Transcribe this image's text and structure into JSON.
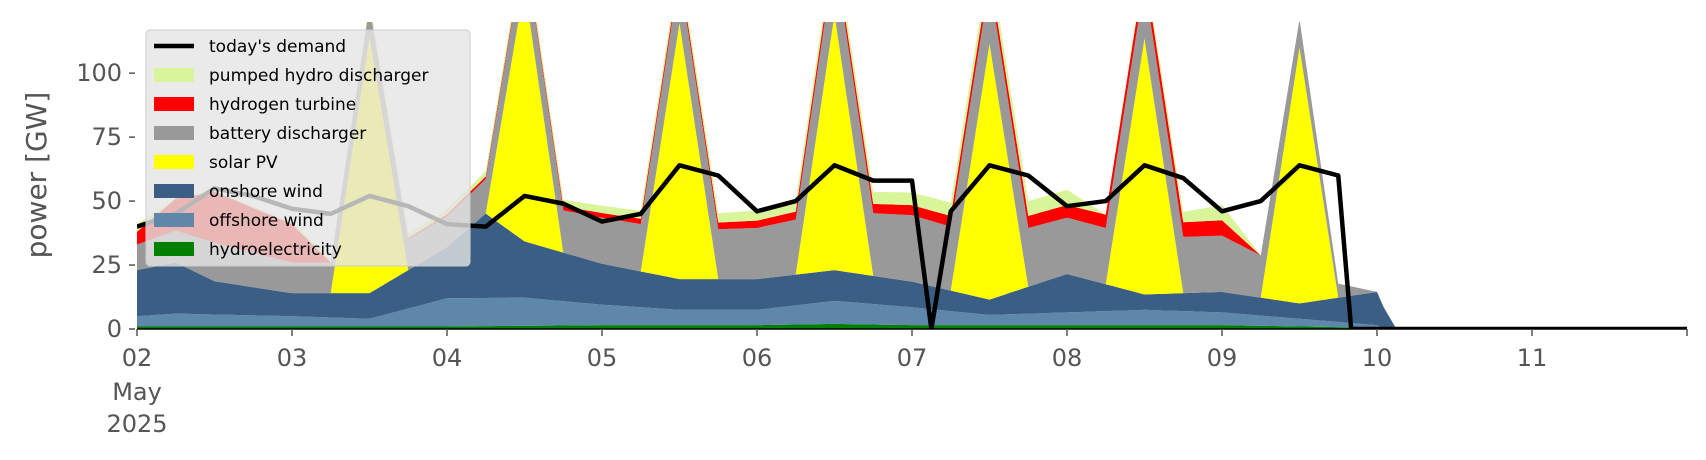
{
  "chart_data": {
    "type": "area",
    "ylabel": "power [GW]",
    "ylim": [
      0,
      120
    ],
    "y_ticks": [
      0,
      25,
      50,
      75,
      100
    ],
    "x_domain": [
      "2025-05-02",
      "2025-05-12"
    ],
    "x_tick_labels": [
      {
        "date": "2025-05-02",
        "label": "02",
        "sub": [
          "May",
          "2025"
        ]
      },
      {
        "date": "2025-05-03",
        "label": "03"
      },
      {
        "date": "2025-05-04",
        "label": "04"
      },
      {
        "date": "2025-05-05",
        "label": "05"
      },
      {
        "date": "2025-05-06",
        "label": "06"
      },
      {
        "date": "2025-05-07",
        "label": "07"
      },
      {
        "date": "2025-05-08",
        "label": "08"
      },
      {
        "date": "2025-05-09",
        "label": "09"
      },
      {
        "date": "2025-05-10",
        "label": "10"
      },
      {
        "date": "2025-05-11",
        "label": "11"
      }
    ],
    "legend_position": "top-left",
    "grid": false,
    "stacked_series": [
      {
        "name": "hydroelectricity",
        "color": "#008000",
        "points": [
          [
            "2025-05-02 00:00",
            1
          ],
          [
            "2025-05-03 00:00",
            1
          ],
          [
            "2025-05-04 00:00",
            1
          ],
          [
            "2025-05-05 00:00",
            1.5
          ],
          [
            "2025-05-06 00:00",
            1.5
          ],
          [
            "2025-05-06 12:00",
            2
          ],
          [
            "2025-05-07 00:00",
            1.5
          ],
          [
            "2025-05-08 00:00",
            1.5
          ],
          [
            "2025-05-09 00:00",
            1.5
          ],
          [
            "2025-05-09 12:00",
            1
          ],
          [
            "2025-05-10 00:00",
            0.5
          ]
        ]
      },
      {
        "name": "offshore wind",
        "color": "#5f87aa",
        "points": [
          [
            "2025-05-02 00:00",
            4
          ],
          [
            "2025-05-02 06:00",
            5
          ],
          [
            "2025-05-03 00:00",
            4
          ],
          [
            "2025-05-03 12:00",
            3
          ],
          [
            "2025-05-04 00:00",
            11
          ],
          [
            "2025-05-04 12:00",
            11
          ],
          [
            "2025-05-05 00:00",
            8
          ],
          [
            "2025-05-05 12:00",
            6
          ],
          [
            "2025-05-06 00:00",
            6
          ],
          [
            "2025-05-06 12:00",
            9
          ],
          [
            "2025-05-07 00:00",
            7
          ],
          [
            "2025-05-07 12:00",
            4
          ],
          [
            "2025-05-08 00:00",
            5
          ],
          [
            "2025-05-08 12:00",
            6
          ],
          [
            "2025-05-09 00:00",
            5
          ],
          [
            "2025-05-09 12:00",
            3
          ],
          [
            "2025-05-10 00:00",
            1
          ]
        ]
      },
      {
        "name": "onshore wind",
        "color": "#3b5f84",
        "points": [
          [
            "2025-05-02 00:00",
            18
          ],
          [
            "2025-05-02 06:00",
            20
          ],
          [
            "2025-05-02 12:00",
            13
          ],
          [
            "2025-05-03 00:00",
            9
          ],
          [
            "2025-05-03 12:00",
            10
          ],
          [
            "2025-05-04 00:00",
            20
          ],
          [
            "2025-05-04 06:00",
            33
          ],
          [
            "2025-05-04 12:00",
            22
          ],
          [
            "2025-05-05 00:00",
            16
          ],
          [
            "2025-05-05 12:00",
            12
          ],
          [
            "2025-05-06 00:00",
            12
          ],
          [
            "2025-05-06 12:00",
            12
          ],
          [
            "2025-05-07 00:00",
            10
          ],
          [
            "2025-05-07 12:00",
            6
          ],
          [
            "2025-05-08 00:00",
            15
          ],
          [
            "2025-05-08 12:00",
            6
          ],
          [
            "2025-05-09 00:00",
            8
          ],
          [
            "2025-05-09 12:00",
            6
          ],
          [
            "2025-05-10 00:00",
            13
          ],
          [
            "2025-05-10 03:00",
            0
          ]
        ]
      },
      {
        "name": "solar PV",
        "color": "#ffff00",
        "points": [
          [
            "2025-05-02 00:00",
            0
          ],
          [
            "2025-05-03 06:00",
            0
          ],
          [
            "2025-05-03 12:00",
            100
          ],
          [
            "2025-05-03 18:00",
            0
          ],
          [
            "2025-05-04 06:00",
            0
          ],
          [
            "2025-05-04 12:00",
            100
          ],
          [
            "2025-05-04 18:00",
            0
          ],
          [
            "2025-05-05 06:00",
            0
          ],
          [
            "2025-05-05 12:00",
            100
          ],
          [
            "2025-05-05 18:00",
            0
          ],
          [
            "2025-05-06 06:00",
            0
          ],
          [
            "2025-05-06 12:00",
            100
          ],
          [
            "2025-05-06 18:00",
            0
          ],
          [
            "2025-05-07 06:00",
            0
          ],
          [
            "2025-05-07 12:00",
            100
          ],
          [
            "2025-05-07 18:00",
            0
          ],
          [
            "2025-05-08 06:00",
            0
          ],
          [
            "2025-05-08 12:00",
            100
          ],
          [
            "2025-05-08 18:00",
            0
          ],
          [
            "2025-05-09 06:00",
            0
          ],
          [
            "2025-05-09 12:00",
            100
          ],
          [
            "2025-05-09 18:00",
            0
          ]
        ]
      },
      {
        "name": "battery discharger",
        "color": "#999999",
        "points": [
          [
            "2025-05-02 00:00",
            10
          ],
          [
            "2025-05-02 12:00",
            15
          ],
          [
            "2025-05-03 00:00",
            12
          ],
          [
            "2025-05-04 00:00",
            12
          ],
          [
            "2025-05-05 00:00",
            18
          ],
          [
            "2025-05-06 00:00",
            20
          ],
          [
            "2025-05-07 00:00",
            26
          ],
          [
            "2025-05-08 00:00",
            22
          ],
          [
            "2025-05-09 00:00",
            22
          ],
          [
            "2025-05-10 00:00",
            0
          ]
        ]
      },
      {
        "name": "hydrogen turbine",
        "color": "#ff0000",
        "points": [
          [
            "2025-05-02 00:00",
            5
          ],
          [
            "2025-05-02 12:00",
            20
          ],
          [
            "2025-05-03 00:00",
            15
          ],
          [
            "2025-05-03 06:00",
            0
          ],
          [
            "2025-05-09 00:00",
            6
          ],
          [
            "2025-05-09 06:00",
            0
          ]
        ]
      },
      {
        "name": "pumped hydro discharger",
        "color": "#d9f59a",
        "points": [
          [
            "2025-05-02 00:00",
            3
          ],
          [
            "2025-05-02 06:00",
            0
          ],
          [
            "2025-05-08 00:00",
            6
          ],
          [
            "2025-05-08 06:00",
            0
          ],
          [
            "2025-05-09 00:00",
            6
          ],
          [
            "2025-05-09 06:00",
            0
          ]
        ]
      }
    ],
    "line_series": {
      "name": "today's demand",
      "color": "#000000",
      "points": [
        [
          "2025-05-02 00:00",
          40
        ],
        [
          "2025-05-02 06:00",
          45
        ],
        [
          "2025-05-02 12:00",
          55
        ],
        [
          "2025-05-02 18:00",
          52
        ],
        [
          "2025-05-03 00:00",
          47
        ],
        [
          "2025-05-03 06:00",
          45
        ],
        [
          "2025-05-03 12:00",
          52
        ],
        [
          "2025-05-03 18:00",
          48
        ],
        [
          "2025-05-04 00:00",
          41
        ],
        [
          "2025-05-04 06:00",
          40
        ],
        [
          "2025-05-04 12:00",
          52
        ],
        [
          "2025-05-04 18:00",
          49
        ],
        [
          "2025-05-05 00:00",
          42
        ],
        [
          "2025-05-05 06:00",
          45
        ],
        [
          "2025-05-05 12:00",
          64
        ],
        [
          "2025-05-05 18:00",
          60
        ],
        [
          "2025-05-06 00:00",
          46
        ],
        [
          "2025-05-06 06:00",
          50
        ],
        [
          "2025-05-06 12:00",
          64
        ],
        [
          "2025-05-06 18:00",
          58
        ],
        [
          "2025-05-07 00:00",
          58
        ],
        [
          "2025-05-07 03:00",
          0
        ],
        [
          "2025-05-07 06:00",
          46
        ],
        [
          "2025-05-07 12:00",
          64
        ],
        [
          "2025-05-07 18:00",
          60
        ],
        [
          "2025-05-08 00:00",
          48
        ],
        [
          "2025-05-08 06:00",
          50
        ],
        [
          "2025-05-08 12:00",
          64
        ],
        [
          "2025-05-08 18:00",
          59
        ],
        [
          "2025-05-09 00:00",
          46
        ],
        [
          "2025-05-09 06:00",
          50
        ],
        [
          "2025-05-09 12:00",
          64
        ],
        [
          "2025-05-09 18:00",
          60
        ],
        [
          "2025-05-09 20:00",
          0
        ],
        [
          "2025-05-12 00:00",
          0
        ]
      ]
    },
    "legend": [
      {
        "label": "today's demand",
        "kind": "line",
        "color": "#000000"
      },
      {
        "label": "pumped hydro discharger",
        "kind": "patch",
        "color": "#d9f59a"
      },
      {
        "label": "hydrogen turbine",
        "kind": "patch",
        "color": "#ff0000"
      },
      {
        "label": "battery discharger",
        "kind": "patch",
        "color": "#999999"
      },
      {
        "label": "solar PV",
        "kind": "patch",
        "color": "#ffff00"
      },
      {
        "label": "onshore wind",
        "kind": "patch",
        "color": "#3b5f84"
      },
      {
        "label": "offshore wind",
        "kind": "patch",
        "color": "#5f87aa"
      },
      {
        "label": "hydroelectricity",
        "kind": "patch",
        "color": "#008000"
      }
    ]
  }
}
